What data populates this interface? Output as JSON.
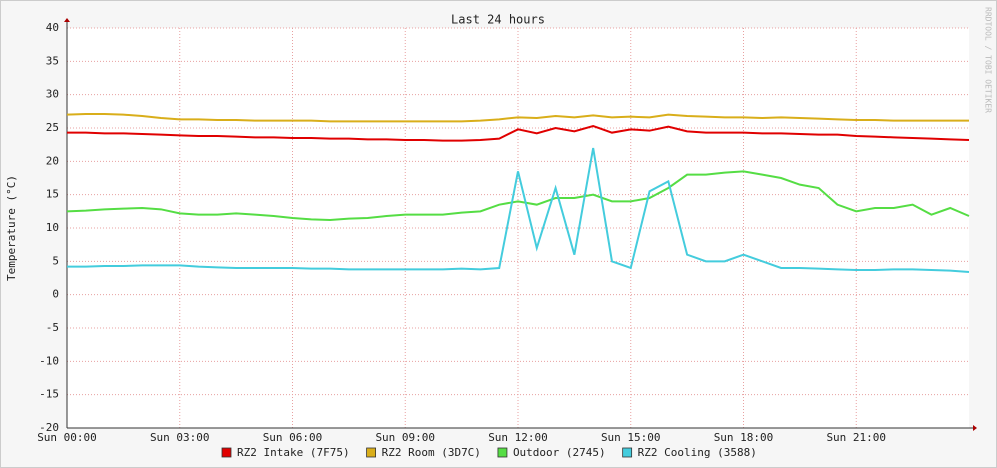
{
  "chart_data": {
    "type": "line",
    "title": "Last 24 hours",
    "y_label": "Temperature (°C)",
    "side_label": "RRDTOOL / TOBI OETIKER",
    "x": [
      0,
      0.5,
      1,
      1.5,
      2,
      2.5,
      3,
      3.5,
      4,
      4.5,
      5,
      5.5,
      6,
      6.5,
      7,
      7.5,
      8,
      8.5,
      9,
      9.5,
      10,
      10.5,
      11,
      11.5,
      12,
      12.5,
      13,
      13.5,
      14,
      14.5,
      15,
      15.5,
      16,
      16.5,
      17,
      17.5,
      18,
      18.5,
      19,
      19.5,
      20,
      20.5,
      21,
      21.5,
      22,
      22.5,
      23,
      23.5,
      24
    ],
    "xlim": [
      0,
      24
    ],
    "xticks": [
      {
        "value": 0,
        "label": "Sun 00:00"
      },
      {
        "value": 3,
        "label": "Sun 03:00"
      },
      {
        "value": 6,
        "label": "Sun 06:00"
      },
      {
        "value": 9,
        "label": "Sun 09:00"
      },
      {
        "value": 12,
        "label": "Sun 12:00"
      },
      {
        "value": 15,
        "label": "Sun 15:00"
      },
      {
        "value": 18,
        "label": "Sun 18:00"
      },
      {
        "value": 21,
        "label": "Sun 21:00"
      }
    ],
    "ylim": [
      -20,
      40
    ],
    "yticks": [
      40,
      35,
      30,
      25,
      20,
      15,
      10,
      5,
      0,
      -5,
      -10,
      -15,
      -20
    ],
    "grid": true,
    "legend": "bottom",
    "series": [
      {
        "name": "RZ2 Intake (7F75)",
        "color": "#e00000",
        "values": [
          24.3,
          24.3,
          24.2,
          24.2,
          24.1,
          24.0,
          23.9,
          23.8,
          23.8,
          23.7,
          23.6,
          23.6,
          23.5,
          23.5,
          23.4,
          23.4,
          23.3,
          23.3,
          23.2,
          23.2,
          23.1,
          23.1,
          23.2,
          23.4,
          24.8,
          24.2,
          25,
          24.5,
          25.3,
          24.3,
          24.8,
          24.6,
          25.2,
          24.5,
          24.3,
          24.3,
          24.3,
          24.2,
          24.2,
          24.1,
          24,
          24,
          23.8,
          23.7,
          23.6,
          23.5,
          23.4,
          23.3,
          23.2
        ]
      },
      {
        "name": "RZ2 Room (3D7C)",
        "color": "#d9ae1a",
        "values": [
          27,
          27.1,
          27.1,
          27,
          26.8,
          26.5,
          26.3,
          26.3,
          26.2,
          26.2,
          26.1,
          26.1,
          26.1,
          26.1,
          26,
          26,
          26,
          26,
          26,
          26,
          26,
          26,
          26.1,
          26.3,
          26.6,
          26.5,
          26.8,
          26.6,
          26.9,
          26.6,
          26.7,
          26.6,
          27,
          26.8,
          26.7,
          26.6,
          26.6,
          26.5,
          26.6,
          26.5,
          26.4,
          26.3,
          26.2,
          26.2,
          26.1,
          26.1,
          26.1,
          26.1,
          26.1
        ]
      },
      {
        "name": "Outdoor (2745)",
        "color": "#55dd44",
        "values": [
          12.5,
          12.6,
          12.8,
          12.9,
          13,
          12.8,
          12.2,
          12,
          12,
          12.2,
          12,
          11.8,
          11.5,
          11.3,
          11.2,
          11.4,
          11.5,
          11.8,
          12,
          12,
          12,
          12.3,
          12.5,
          13.5,
          14,
          13.5,
          14.5,
          14.5,
          15,
          14,
          14,
          14.5,
          16,
          18,
          18,
          18.3,
          18.5,
          18,
          17.5,
          16.5,
          16,
          13.5,
          12.5,
          13,
          13,
          13.5,
          12,
          13,
          11.8
        ]
      },
      {
        "name": "RZ2 Cooling (3588)",
        "color": "#44ccdd",
        "values": [
          4.2,
          4.2,
          4.3,
          4.3,
          4.4,
          4.4,
          4.4,
          4.2,
          4.1,
          4,
          4,
          4,
          4,
          3.9,
          3.9,
          3.8,
          3.8,
          3.8,
          3.8,
          3.8,
          3.8,
          3.9,
          3.8,
          4,
          18.5,
          7,
          16,
          6,
          22,
          5,
          4,
          15.5,
          17,
          6,
          5,
          5,
          6,
          5,
          4,
          4,
          3.9,
          3.8,
          3.7,
          3.7,
          3.8,
          3.8,
          3.7,
          3.6,
          3.4
        ]
      }
    ]
  }
}
